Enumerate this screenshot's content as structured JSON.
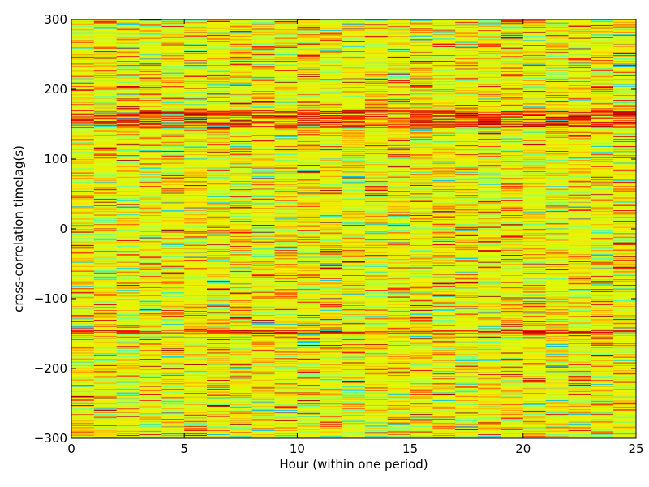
{
  "chart_data": {
    "type": "heatmap",
    "title": "",
    "xlabel": "Hour (within one period)",
    "ylabel": "cross-correlation timelag(s)",
    "xlim": [
      0,
      25
    ],
    "ylim": [
      -300,
      300
    ],
    "xticks": [
      0,
      5,
      10,
      15,
      20,
      25
    ],
    "yticks": [
      -300,
      -200,
      -100,
      0,
      100,
      200,
      300
    ],
    "xtick_labels": [
      "0",
      "5",
      "10",
      "15",
      "20",
      "25"
    ],
    "ytick_labels": [
      "−300",
      "−200",
      "−100",
      "0",
      "100",
      "200",
      "300"
    ],
    "columns": 25,
    "lag_step_s": 1,
    "colormap": "jet",
    "grid": false,
    "legend": "none",
    "dominant_color": "#e8f000",
    "notable_features": [
      {
        "lag_range_s": [
          145,
          170
        ],
        "description": "persistent dark red / orange horizontal bands across all hours"
      },
      {
        "lag_range_s": [
          -150,
          -145
        ],
        "description": "faint red line across most hours"
      }
    ]
  }
}
